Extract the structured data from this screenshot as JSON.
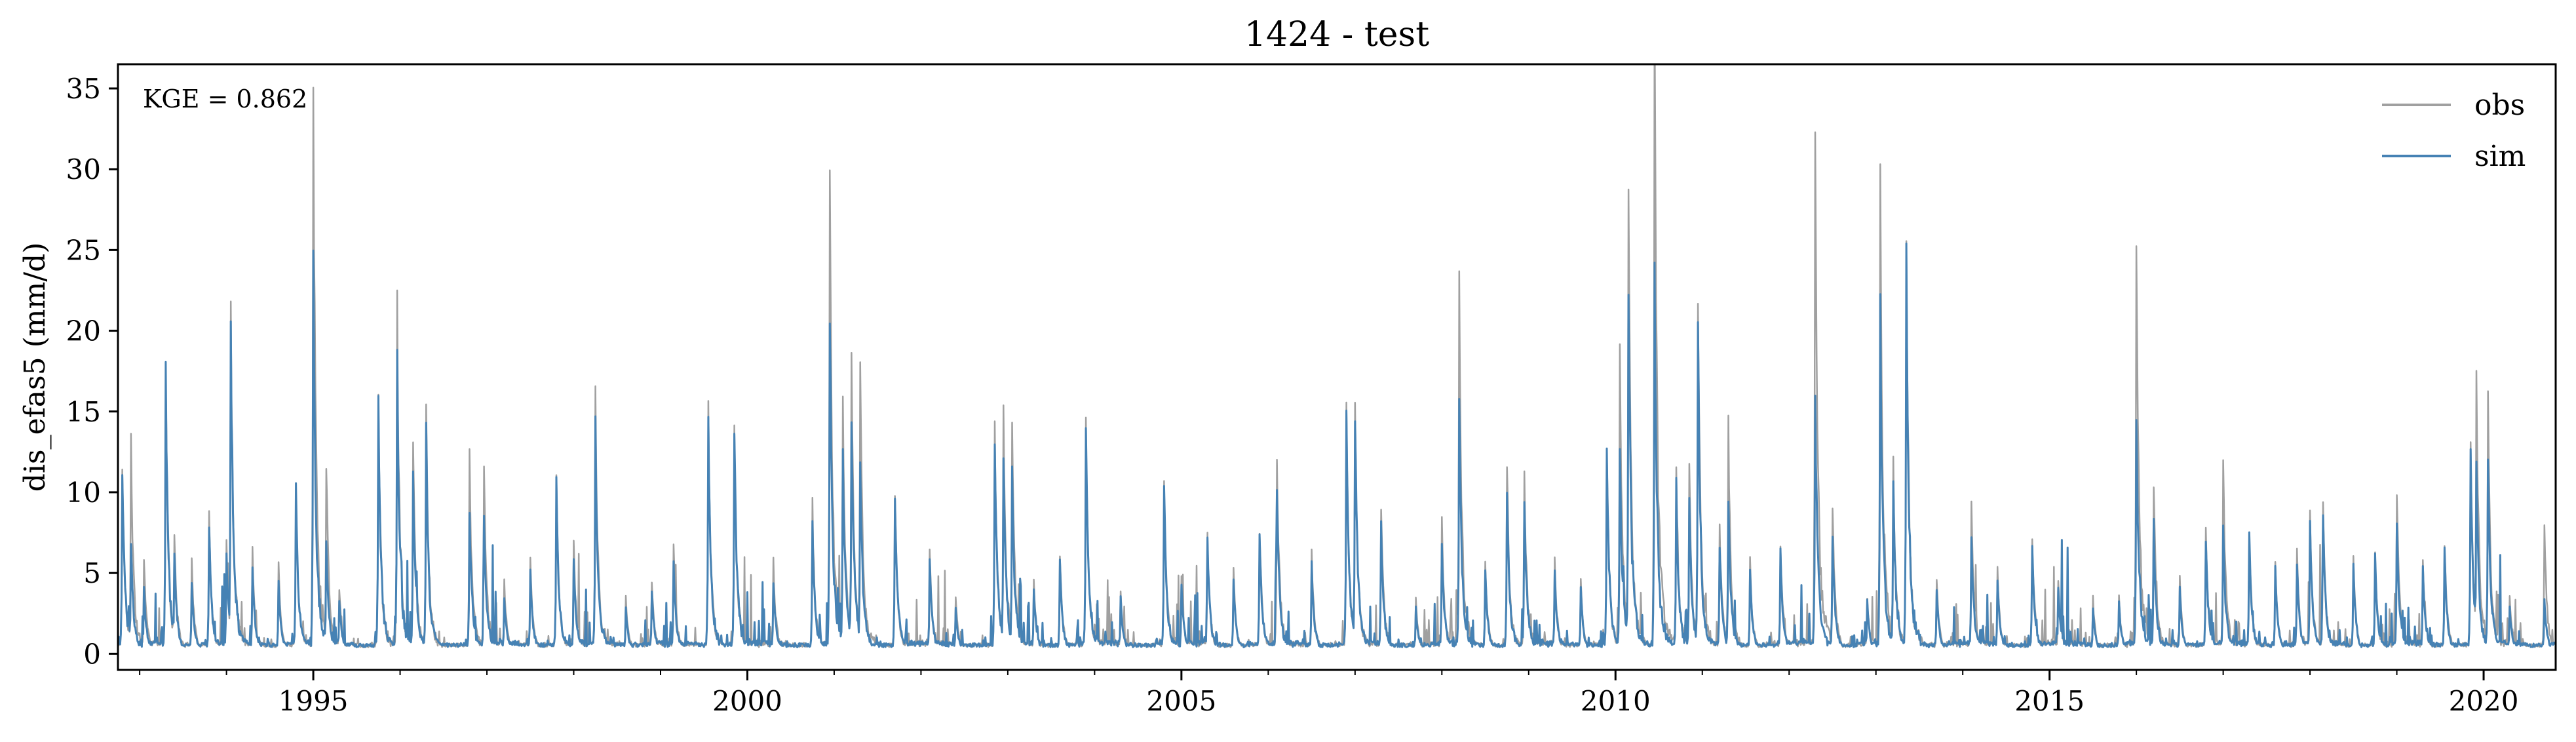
{
  "chart_data": {
    "type": "line",
    "title": "1424 - test",
    "xlabel": "",
    "ylabel": "dis_efas5 (mm/d)",
    "annotation": "KGE = 0.862",
    "xlim": [
      1992.75,
      2020.83
    ],
    "ylim": [
      -1.0,
      36.5
    ],
    "x_ticks": [
      1995,
      2000,
      2005,
      2010,
      2015,
      2020
    ],
    "x_tick_labels": [
      "1995",
      "2000",
      "2005",
      "2010",
      "2015",
      "2020"
    ],
    "y_ticks": [
      0,
      5,
      10,
      15,
      20,
      25,
      30,
      35
    ],
    "y_tick_labels": [
      "0",
      "5",
      "10",
      "15",
      "20",
      "25",
      "30",
      "35"
    ],
    "grid": false,
    "legend_position": "top-right",
    "baseflow": 0.4,
    "series": [
      {
        "name": "obs",
        "color": "#a0a0a0",
        "peaks": [
          [
            1992.8,
            10.2
          ],
          [
            1992.9,
            11.3
          ],
          [
            1993.05,
            5.2
          ],
          [
            1993.3,
            15.0
          ],
          [
            1993.4,
            6.5
          ],
          [
            1993.6,
            5.0
          ],
          [
            1993.8,
            7.5
          ],
          [
            1994.0,
            6.0
          ],
          [
            1994.05,
            18.3
          ],
          [
            1994.3,
            5.5
          ],
          [
            1994.6,
            4.8
          ],
          [
            1994.8,
            9.2
          ],
          [
            1995.0,
            30.5
          ],
          [
            1995.15,
            10.5
          ],
          [
            1995.3,
            3.5
          ],
          [
            1995.75,
            13.7
          ],
          [
            1995.97,
            18.6
          ],
          [
            1996.15,
            12.0
          ],
          [
            1996.3,
            13.7
          ],
          [
            1996.8,
            10.6
          ],
          [
            1996.97,
            10.5
          ],
          [
            1997.2,
            4.0
          ],
          [
            1997.5,
            5.0
          ],
          [
            1997.8,
            9.3
          ],
          [
            1998.0,
            6.0
          ],
          [
            1998.25,
            14.2
          ],
          [
            1998.6,
            3.0
          ],
          [
            1998.9,
            4.0
          ],
          [
            1999.15,
            6.0
          ],
          [
            1999.55,
            13.0
          ],
          [
            1999.85,
            12.3
          ],
          [
            2000.3,
            5.0
          ],
          [
            2000.75,
            8.0
          ],
          [
            2000.95,
            25.8
          ],
          [
            2001.1,
            13.5
          ],
          [
            2001.2,
            16.0
          ],
          [
            2001.3,
            15.8
          ],
          [
            2001.7,
            8.8
          ],
          [
            2002.1,
            5.5
          ],
          [
            2002.4,
            3.0
          ],
          [
            2002.85,
            12.5
          ],
          [
            2002.95,
            12.9
          ],
          [
            2003.05,
            12.5
          ],
          [
            2003.3,
            4.0
          ],
          [
            2003.6,
            5.5
          ],
          [
            2003.9,
            13.0
          ],
          [
            2004.3,
            3.5
          ],
          [
            2004.8,
            9.4
          ],
          [
            2005.0,
            4.0
          ],
          [
            2005.3,
            6.4
          ],
          [
            2005.6,
            4.5
          ],
          [
            2005.9,
            6.8
          ],
          [
            2006.1,
            11.0
          ],
          [
            2006.5,
            5.5
          ],
          [
            2006.9,
            13.4
          ],
          [
            2007.0,
            13.4
          ],
          [
            2007.3,
            8.0
          ],
          [
            2007.7,
            3.0
          ],
          [
            2008.0,
            7.2
          ],
          [
            2008.2,
            20.0
          ],
          [
            2008.5,
            5.0
          ],
          [
            2008.75,
            10.6
          ],
          [
            2008.95,
            10.0
          ],
          [
            2009.3,
            5.0
          ],
          [
            2009.6,
            4.0
          ],
          [
            2009.9,
            11.0
          ],
          [
            2010.05,
            16.5
          ],
          [
            2010.15,
            24.8
          ],
          [
            2010.45,
            34.7
          ],
          [
            2010.7,
            10.5
          ],
          [
            2010.85,
            10.0
          ],
          [
            2010.95,
            19.5
          ],
          [
            2011.2,
            7.0
          ],
          [
            2011.3,
            12.5
          ],
          [
            2011.55,
            5.0
          ],
          [
            2011.9,
            5.8
          ],
          [
            2012.3,
            29.2
          ],
          [
            2012.5,
            8.2
          ],
          [
            2012.9,
            3.0
          ],
          [
            2013.05,
            25.8
          ],
          [
            2013.2,
            10.5
          ],
          [
            2013.35,
            22.7
          ],
          [
            2013.7,
            4.0
          ],
          [
            2014.1,
            8.0
          ],
          [
            2014.4,
            4.5
          ],
          [
            2014.8,
            6.3
          ],
          [
            2015.1,
            4.0
          ],
          [
            2015.5,
            3.0
          ],
          [
            2015.8,
            3.0
          ],
          [
            2016.0,
            22.2
          ],
          [
            2016.2,
            9.2
          ],
          [
            2016.5,
            4.0
          ],
          [
            2016.8,
            6.5
          ],
          [
            2017.0,
            10.5
          ],
          [
            2017.3,
            6.5
          ],
          [
            2017.6,
            5.0
          ],
          [
            2017.85,
            5.5
          ],
          [
            2018.0,
            7.5
          ],
          [
            2018.15,
            8.1
          ],
          [
            2018.5,
            5.0
          ],
          [
            2018.75,
            5.4
          ],
          [
            2019.0,
            8.7
          ],
          [
            2019.3,
            5.0
          ],
          [
            2019.55,
            6.0
          ],
          [
            2019.85,
            11.4
          ],
          [
            2019.92,
            15.3
          ],
          [
            2020.05,
            13.5
          ],
          [
            2020.3,
            3.0
          ],
          [
            2020.7,
            6.9
          ]
        ]
      },
      {
        "name": "sim",
        "color": "#4682b4",
        "peaks": [
          [
            1992.8,
            10.0
          ],
          [
            1992.9,
            6.0
          ],
          [
            1993.05,
            3.5
          ],
          [
            1993.3,
            15.2
          ],
          [
            1993.4,
            5.5
          ],
          [
            1993.6,
            4.0
          ],
          [
            1993.8,
            7.0
          ],
          [
            1994.0,
            5.5
          ],
          [
            1994.05,
            17.8
          ],
          [
            1994.3,
            4.5
          ],
          [
            1994.6,
            4.0
          ],
          [
            1994.8,
            9.0
          ],
          [
            1995.0,
            21.2
          ],
          [
            1995.15,
            6.0
          ],
          [
            1995.3,
            2.8
          ],
          [
            1995.75,
            13.4
          ],
          [
            1995.97,
            16.0
          ],
          [
            1996.15,
            9.5
          ],
          [
            1996.3,
            12.0
          ],
          [
            1996.8,
            7.8
          ],
          [
            1996.97,
            7.5
          ],
          [
            1997.2,
            3.0
          ],
          [
            1997.5,
            4.5
          ],
          [
            1997.8,
            9.2
          ],
          [
            1998.0,
            5.0
          ],
          [
            1998.25,
            12.2
          ],
          [
            1998.6,
            2.5
          ],
          [
            1998.9,
            3.5
          ],
          [
            1999.15,
            5.0
          ],
          [
            1999.55,
            13.0
          ],
          [
            1999.85,
            12.2
          ],
          [
            2000.3,
            4.0
          ],
          [
            2000.75,
            7.0
          ],
          [
            2000.95,
            18.7
          ],
          [
            2001.1,
            11.0
          ],
          [
            2001.2,
            13.0
          ],
          [
            2001.3,
            10.5
          ],
          [
            2001.7,
            8.7
          ],
          [
            2002.1,
            5.0
          ],
          [
            2002.4,
            2.5
          ],
          [
            2002.85,
            11.5
          ],
          [
            2002.95,
            11.0
          ],
          [
            2003.05,
            10.0
          ],
          [
            2003.3,
            3.5
          ],
          [
            2003.6,
            5.0
          ],
          [
            2003.9,
            12.8
          ],
          [
            2004.3,
            3.0
          ],
          [
            2004.8,
            9.3
          ],
          [
            2005.0,
            3.8
          ],
          [
            2005.3,
            6.3
          ],
          [
            2005.6,
            4.0
          ],
          [
            2005.9,
            6.5
          ],
          [
            2006.1,
            9.0
          ],
          [
            2006.5,
            5.0
          ],
          [
            2006.9,
            13.2
          ],
          [
            2007.0,
            13.2
          ],
          [
            2007.3,
            7.0
          ],
          [
            2007.7,
            2.5
          ],
          [
            2008.0,
            6.0
          ],
          [
            2008.2,
            13.5
          ],
          [
            2008.5,
            4.5
          ],
          [
            2008.75,
            9.0
          ],
          [
            2008.95,
            8.5
          ],
          [
            2009.3,
            4.5
          ],
          [
            2009.6,
            3.5
          ],
          [
            2009.9,
            11.0
          ],
          [
            2010.05,
            11.0
          ],
          [
            2010.15,
            20.2
          ],
          [
            2010.45,
            20.9
          ],
          [
            2010.7,
            9.0
          ],
          [
            2010.85,
            8.5
          ],
          [
            2010.95,
            17.6
          ],
          [
            2011.2,
            6.0
          ],
          [
            2011.3,
            8.5
          ],
          [
            2011.55,
            4.5
          ],
          [
            2011.9,
            5.5
          ],
          [
            2012.3,
            14.3
          ],
          [
            2012.5,
            6.5
          ],
          [
            2012.9,
            2.8
          ],
          [
            2013.05,
            18.9
          ],
          [
            2013.2,
            9.5
          ],
          [
            2013.35,
            21.4
          ],
          [
            2013.7,
            3.5
          ],
          [
            2014.1,
            6.5
          ],
          [
            2014.4,
            4.0
          ],
          [
            2014.8,
            6.0
          ],
          [
            2015.1,
            3.5
          ],
          [
            2015.5,
            2.5
          ],
          [
            2015.8,
            2.8
          ],
          [
            2016.0,
            13.2
          ],
          [
            2016.2,
            7.0
          ],
          [
            2016.5,
            3.5
          ],
          [
            2016.8,
            6.3
          ],
          [
            2017.0,
            6.8
          ],
          [
            2017.3,
            6.3
          ],
          [
            2017.6,
            4.5
          ],
          [
            2017.85,
            5.0
          ],
          [
            2018.0,
            7.0
          ],
          [
            2018.15,
            7.4
          ],
          [
            2018.5,
            4.8
          ],
          [
            2018.75,
            5.2
          ],
          [
            2019.0,
            7.0
          ],
          [
            2019.3,
            4.5
          ],
          [
            2019.55,
            5.5
          ],
          [
            2019.85,
            11.0
          ],
          [
            2019.92,
            10.0
          ],
          [
            2020.05,
            11.0
          ],
          [
            2020.3,
            2.5
          ],
          [
            2020.7,
            3.0
          ]
        ]
      }
    ]
  }
}
